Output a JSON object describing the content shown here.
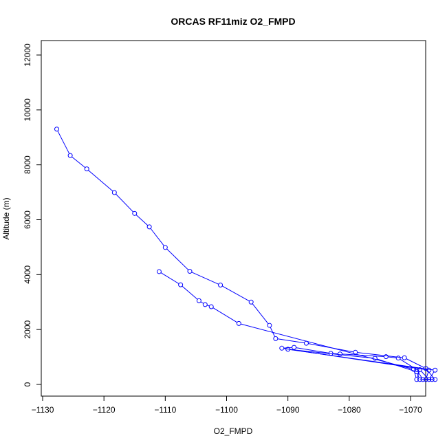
{
  "chart_data": {
    "type": "line",
    "title": "ORCAS RF11miz O2_FMPD",
    "xlabel": "O2_FMPD",
    "ylabel": "Altitude (m)",
    "xlim": [
      -1130,
      -1065
    ],
    "ylim": [
      -300,
      12500
    ],
    "x_ticks": [
      -1130,
      -1120,
      -1110,
      -1100,
      -1090,
      -1080,
      -1070
    ],
    "y_ticks": [
      0,
      2000,
      4000,
      6000,
      8000,
      10000,
      12000
    ],
    "grid": false,
    "series_color": "#0000ff",
    "marker": "open-circle",
    "series": [
      {
        "points": [
          [
            -1127.7,
            9300
          ],
          [
            -1125.5,
            8340
          ],
          [
            -1122.8,
            7850
          ],
          [
            -1118.3,
            6990
          ],
          [
            -1115.0,
            6230
          ],
          [
            -1112.6,
            5740
          ],
          [
            -1110.0,
            4990
          ],
          [
            -1106.0,
            4120
          ],
          [
            -1101.0,
            3620
          ],
          [
            -1096.0,
            3000
          ],
          [
            -1093.0,
            2150
          ],
          [
            -1092.0,
            1670
          ],
          [
            -1087.0,
            1500
          ],
          [
            -1079.0,
            1170
          ],
          [
            -1071.0,
            970
          ],
          [
            -1067.5,
            580
          ],
          [
            -1066.0,
            180
          ],
          [
            -1068.0,
            180
          ],
          [
            -1069.0,
            540
          ],
          [
            -1072.0,
            960
          ],
          [
            -1074.0,
            1010
          ],
          [
            -1081.5,
            1110
          ],
          [
            -1083.0,
            1130
          ],
          [
            -1089.0,
            1350
          ],
          [
            -1091.0,
            1320
          ],
          [
            -1067.0,
            520
          ],
          [
            -1067.5,
            180
          ],
          [
            -1066.5,
            180
          ],
          [
            -1068.5,
            180
          ],
          [
            -1069.0,
            460
          ],
          [
            -1075.8,
            950
          ],
          [
            -1090.0,
            1280
          ],
          [
            -1066.0,
            520
          ],
          [
            -1067.0,
            180
          ],
          [
            -1068.5,
            540
          ],
          [
            -1069.0,
            180
          ],
          [
            -1069.5,
            550
          ],
          [
            -1098.0,
            2220
          ],
          [
            -1102.5,
            2830
          ],
          [
            -1103.5,
            2910
          ],
          [
            -1104.5,
            3050
          ],
          [
            -1107.5,
            3630
          ],
          [
            -1111.0,
            4110
          ]
        ]
      }
    ]
  }
}
